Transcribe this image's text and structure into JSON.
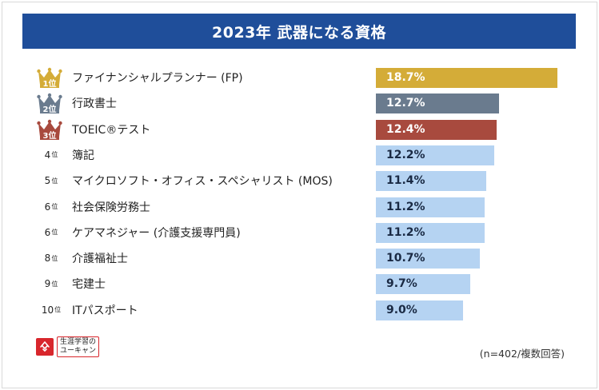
{
  "header": {
    "title": "2023年 武器になる資格"
  },
  "chart_data": {
    "type": "bar",
    "orientation": "horizontal",
    "title": "2023年 武器になる資格",
    "categories": [
      "ファイナンシャルプランナー (FP)",
      "行政書士",
      "TOEIC®テスト",
      "簿記",
      "マイクロソフト・オフィス・スペシャリスト (MOS)",
      "社会保険労務士",
      "ケアマネジャー (介護支援専門員)",
      "介護福祉士",
      "宅建士",
      "ITパスポート"
    ],
    "rank_labels": [
      "1位",
      "2位",
      "3位",
      "4位",
      "5位",
      "6位",
      "6位",
      "8位",
      "9位",
      "10位"
    ],
    "values": [
      18.7,
      12.7,
      12.4,
      12.2,
      11.4,
      11.2,
      11.2,
      10.7,
      9.7,
      9.0
    ],
    "value_labels": [
      "18.7%",
      "12.7%",
      "12.4%",
      "12.2%",
      "11.4%",
      "11.2%",
      "11.2%",
      "10.7%",
      "9.7%",
      "9.0%"
    ],
    "unit": "%",
    "xlim": [
      0,
      20
    ],
    "grid": false,
    "legend": "none",
    "note": "(n=402/複数回答)"
  },
  "colors": {
    "header_bg": "#1f4e9a",
    "bars": [
      "#d4ac38",
      "#6a7b8e",
      "#a84a3e",
      "#b5d3f2",
      "#b5d3f2",
      "#b5d3f2",
      "#b5d3f2",
      "#b5d3f2",
      "#b5d3f2",
      "#b5d3f2"
    ],
    "crowns": [
      "#d4ac38",
      "#6a7b8e",
      "#a84a3e"
    ]
  },
  "logo": {
    "text_line1": "生涯学習の",
    "text_line2": "ユーキャン",
    "icon": "ucan-logo-icon"
  }
}
